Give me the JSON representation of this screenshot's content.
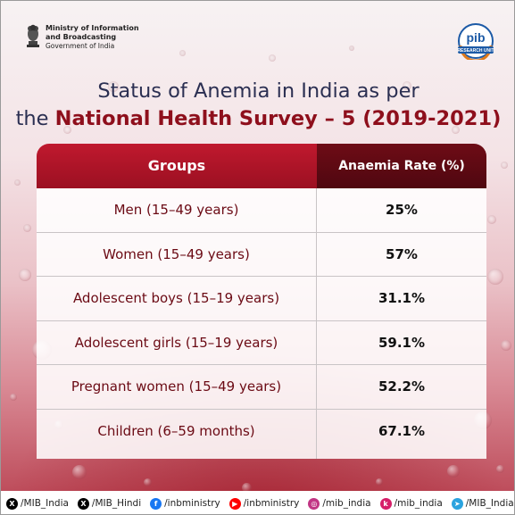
{
  "header": {
    "ministry_line1": "Ministry of Information",
    "ministry_line2": "and Broadcasting",
    "ministry_line3": "Government of India",
    "pib_logo_text": "pib",
    "pib_logo_subtext": "RESEARCH UNIT"
  },
  "title": {
    "line1": "Status of Anemia in India as per",
    "line2_prefix": "the ",
    "line2_highlight": "National Health Survey – 5 (2019-2021)"
  },
  "table": {
    "headers": {
      "groups": "Groups",
      "rate": "Anaemia Rate (%)"
    },
    "rows": [
      {
        "group": "Men (15–49 years)",
        "rate": "25%"
      },
      {
        "group": "Women (15–49 years)",
        "rate": "57%"
      },
      {
        "group": "Adolescent boys (15–19 years)",
        "rate": "31.1%"
      },
      {
        "group": "Adolescent girls (15–19 years)",
        "rate": "59.1%"
      },
      {
        "group": "Pregnant women (15–49 years)",
        "rate": "52.2%"
      },
      {
        "group": "Children (6–59 months)",
        "rate": "67.1%"
      }
    ]
  },
  "footer": {
    "socials": [
      {
        "icon": "x-icon",
        "handle": "/MIB_India",
        "color": "#000000"
      },
      {
        "icon": "x-icon",
        "handle": "/MIB_Hindi",
        "color": "#000000"
      },
      {
        "icon": "facebook-icon",
        "handle": "/inbministry",
        "color": "#1877f2"
      },
      {
        "icon": "youtube-icon",
        "handle": "/inbministry",
        "color": "#ff0000"
      },
      {
        "icon": "instagram-icon",
        "handle": "/mib_india",
        "color": "#c13584"
      },
      {
        "icon": "koo-icon",
        "handle": "/mib_india",
        "color": "#d61f69"
      },
      {
        "icon": "telegram-icon",
        "handle": "/MIB_India",
        "color": "#2aa3df"
      }
    ]
  },
  "colors": {
    "title_dark": "#2b2f52",
    "title_highlight": "#8e0f1c",
    "header_red": "#c0192e",
    "header_dark_red": "#5c0912",
    "group_text": "#6b0a14"
  }
}
